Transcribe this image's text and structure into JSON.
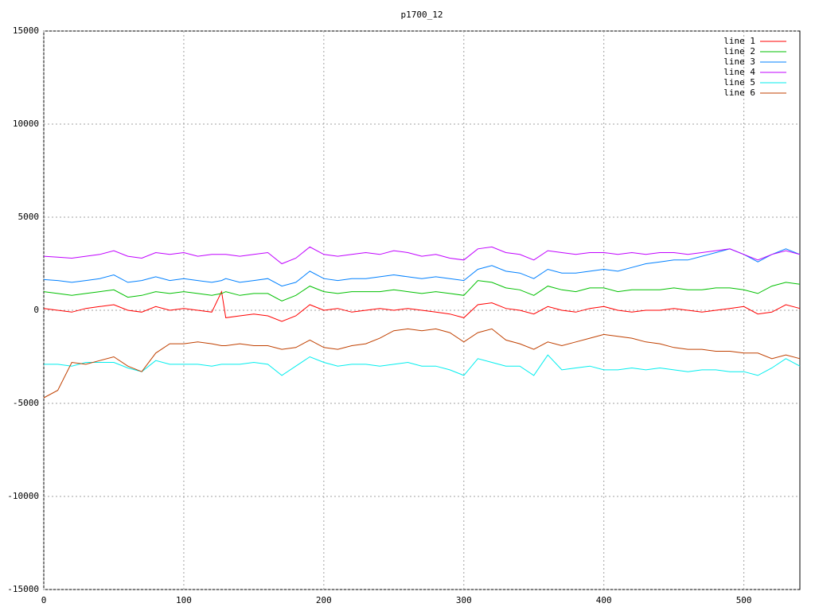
{
  "chart_data": {
    "type": "line",
    "title": "p1700_12",
    "x": [
      0,
      10,
      20,
      30,
      40,
      50,
      60,
      70,
      80,
      90,
      100,
      110,
      120,
      127,
      130,
      140,
      150,
      160,
      170,
      180,
      190,
      200,
      210,
      220,
      230,
      240,
      250,
      260,
      270,
      280,
      290,
      300,
      310,
      320,
      330,
      340,
      350,
      360,
      370,
      380,
      390,
      400,
      410,
      420,
      430,
      440,
      450,
      460,
      470,
      480,
      490,
      500,
      510,
      520,
      530,
      540
    ],
    "series": [
      {
        "name": "line 1",
        "color": "#ff0000",
        "values": [
          100,
          0,
          -100,
          100,
          200,
          300,
          0,
          -100,
          200,
          0,
          100,
          0,
          -100,
          1000,
          -400,
          -300,
          -200,
          -300,
          -600,
          -300,
          300,
          0,
          100,
          -100,
          0,
          100,
          0,
          100,
          0,
          -100,
          -200,
          -400,
          300,
          400,
          100,
          0,
          -200,
          200,
          0,
          -100,
          100,
          200,
          0,
          -100,
          0,
          0,
          100,
          0,
          -100,
          0,
          100,
          200,
          -200,
          -100,
          300,
          100
        ]
      },
      {
        "name": "line 2",
        "color": "#00c000",
        "values": [
          1000,
          900,
          800,
          900,
          1000,
          1100,
          700,
          800,
          1000,
          900,
          1000,
          900,
          800,
          900,
          1000,
          800,
          900,
          900,
          500,
          800,
          1300,
          1000,
          900,
          1000,
          1000,
          1000,
          1100,
          1000,
          900,
          1000,
          900,
          800,
          1600,
          1500,
          1200,
          1100,
          800,
          1300,
          1100,
          1000,
          1200,
          1200,
          1000,
          1100,
          1100,
          1100,
          1200,
          1100,
          1100,
          1200,
          1200,
          1100,
          900,
          1300,
          1500,
          1400
        ]
      },
      {
        "name": "line 3",
        "color": "#0080ff",
        "values": [
          1650,
          1600,
          1500,
          1600,
          1700,
          1900,
          1500,
          1600,
          1800,
          1600,
          1700,
          1600,
          1500,
          1600,
          1700,
          1500,
          1600,
          1700,
          1300,
          1500,
          2100,
          1700,
          1600,
          1700,
          1700,
          1800,
          1900,
          1800,
          1700,
          1800,
          1700,
          1600,
          2200,
          2400,
          2100,
          2000,
          1700,
          2200,
          2000,
          2000,
          2100,
          2200,
          2100,
          2300,
          2500,
          2600,
          2700,
          2700,
          2900,
          3100,
          3300,
          3000,
          2600,
          3000,
          3300,
          3000
        ]
      },
      {
        "name": "line 4",
        "color": "#c000ff",
        "values": [
          2900,
          2850,
          2800,
          2900,
          3000,
          3200,
          2900,
          2800,
          3100,
          3000,
          3100,
          2900,
          3000,
          3000,
          3000,
          2900,
          3000,
          3100,
          2500,
          2800,
          3400,
          3000,
          2900,
          3000,
          3100,
          3000,
          3200,
          3100,
          2900,
          3000,
          2800,
          2700,
          3300,
          3400,
          3100,
          3000,
          2700,
          3200,
          3100,
          3000,
          3100,
          3100,
          3000,
          3100,
          3000,
          3100,
          3100,
          3000,
          3100,
          3200,
          3300,
          3000,
          2700,
          3000,
          3200,
          3000
        ]
      },
      {
        "name": "line 5",
        "color": "#00eeee",
        "values": [
          -2900,
          -2900,
          -3000,
          -2800,
          -2800,
          -2800,
          -3100,
          -3300,
          -2700,
          -2900,
          -2900,
          -2900,
          -3000,
          -2900,
          -2900,
          -2900,
          -2800,
          -2900,
          -3500,
          -3000,
          -2500,
          -2800,
          -3000,
          -2900,
          -2900,
          -3000,
          -2900,
          -2800,
          -3000,
          -3000,
          -3200,
          -3500,
          -2600,
          -2800,
          -3000,
          -3000,
          -3500,
          -2400,
          -3200,
          -3100,
          -3000,
          -3200,
          -3200,
          -3100,
          -3200,
          -3100,
          -3200,
          -3300,
          -3200,
          -3200,
          -3300,
          -3300,
          -3500,
          -3100,
          -2600,
          -3000
        ]
      },
      {
        "name": "line 6",
        "color": "#c04000",
        "values": [
          -4700,
          -4300,
          -2800,
          -2900,
          -2700,
          -2500,
          -3000,
          -3300,
          -2300,
          -1800,
          -1800,
          -1700,
          -1800,
          -1900,
          -1900,
          -1800,
          -1900,
          -1900,
          -2100,
          -2000,
          -1600,
          -2000,
          -2100,
          -1900,
          -1800,
          -1500,
          -1100,
          -1000,
          -1100,
          -1000,
          -1200,
          -1700,
          -1200,
          -1000,
          -1600,
          -1800,
          -2100,
          -1700,
          -1900,
          -1700,
          -1500,
          -1300,
          -1400,
          -1500,
          -1700,
          -1800,
          -2000,
          -2100,
          -2100,
          -2200,
          -2200,
          -2300,
          -2300,
          -2600,
          -2400,
          -2600
        ]
      }
    ],
    "xlim": [
      0,
      540
    ],
    "xticks": [
      0,
      100,
      200,
      300,
      400,
      500
    ],
    "ylim": [
      -15000,
      15000
    ],
    "yticks": [
      -15000,
      -10000,
      -5000,
      0,
      5000,
      10000,
      15000
    ],
    "grid": true,
    "legend": "top-right"
  }
}
